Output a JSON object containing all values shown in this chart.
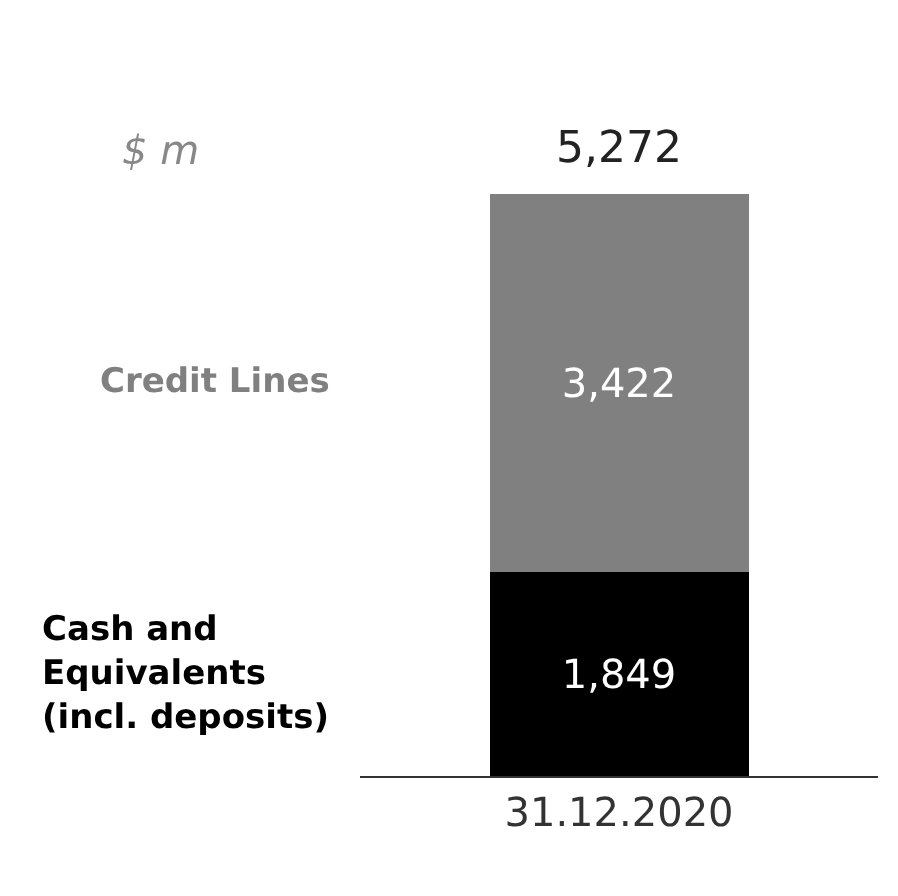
{
  "chart_data": {
    "type": "bar",
    "stacked": true,
    "annotations": [
      "$ m"
    ],
    "categories": [
      "31.12.2020"
    ],
    "series": [
      {
        "name": "Cash and Equivalents (incl. deposits)",
        "color": "#000000",
        "values": [
          1849
        ],
        "value_labels": [
          "1,849"
        ]
      },
      {
        "name": "Credit Lines",
        "color": "#808080",
        "values": [
          3422
        ],
        "value_labels": [
          "3,422"
        ]
      }
    ],
    "totals": [
      "5,272"
    ],
    "legend": false,
    "tick_labels": "x"
  }
}
